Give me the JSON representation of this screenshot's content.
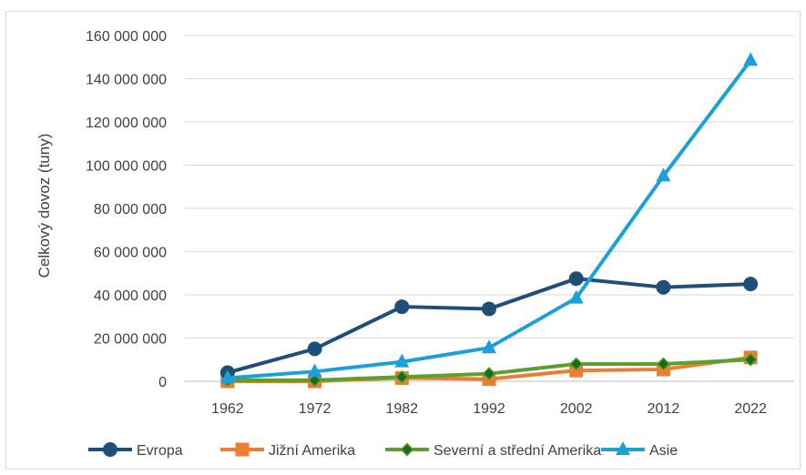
{
  "chart_data": {
    "type": "line",
    "title": "",
    "xlabel": "",
    "ylabel": "Celkový dovoz (tuny)",
    "categories": [
      "1962",
      "1972",
      "1982",
      "1992",
      "2002",
      "2012",
      "2022"
    ],
    "yticks": [
      "0",
      "20 000 000",
      "40 000 000",
      "60 000 000",
      "80 000 000",
      "100 000 000",
      "120 000 000",
      "140 000 000",
      "160 000 000"
    ],
    "ylim": [
      0,
      160000000
    ],
    "grid": true,
    "legend_position": "bottom",
    "series": [
      {
        "name": "Evropa",
        "color": "#1f4e79",
        "marker": "circle",
        "values": [
          4000000,
          15000000,
          34500000,
          33500000,
          47500000,
          43500000,
          45000000
        ]
      },
      {
        "name": "Jižní Amerika",
        "color": "#ed7d31",
        "marker": "square",
        "values": [
          0,
          0,
          1500000,
          1000000,
          5000000,
          5500000,
          11000000
        ]
      },
      {
        "name": "Severní a střední Amerika",
        "color": "#5aa02c",
        "marker": "diamond",
        "values": [
          500000,
          500000,
          2000000,
          3500000,
          8000000,
          8000000,
          10000000
        ]
      },
      {
        "name": "Asie",
        "color": "#1ba1d7",
        "marker": "triangle",
        "values": [
          1500000,
          4500000,
          9000000,
          15500000,
          38500000,
          95000000,
          148500000
        ]
      }
    ]
  }
}
